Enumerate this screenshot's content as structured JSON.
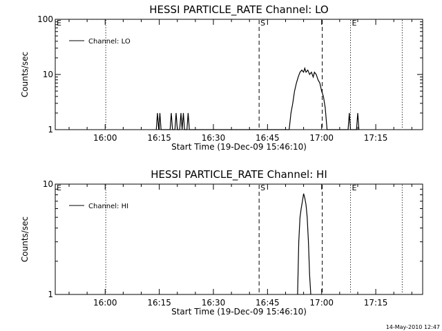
{
  "footer": {
    "timestamp": "14-May-2010 12:47"
  },
  "chart_data": [
    {
      "type": "line",
      "title": "HESSI PARTICLE_RATE Channel: LO",
      "xlabel": "Start Time (19-Dec-09 15:46:10)",
      "ylabel": "Counts/sec",
      "yscale": "log",
      "xlim": [
        "15:46:10",
        "17:28:00"
      ],
      "ylim": [
        1,
        100
      ],
      "x_tick_labels": [
        "16:00",
        "16:15",
        "16:30",
        "16:45",
        "17:00",
        "17:15"
      ],
      "y_tick_labels": [
        "1",
        "10",
        "100"
      ],
      "legend": {
        "entries": [
          "Channel: LO"
        ],
        "placement": "top-left"
      },
      "series": [
        {
          "name": "Channel: LO",
          "points": [
            [
              "16:14:10",
              1
            ],
            [
              "16:14:30",
              2
            ],
            [
              "16:14:50",
              1
            ],
            [
              "16:15:10",
              2
            ],
            [
              "16:15:30",
              1
            ],
            [
              "16:18:00",
              1
            ],
            [
              "16:18:20",
              2
            ],
            [
              "16:18:40",
              1
            ],
            [
              "16:19:20",
              1
            ],
            [
              "16:19:40",
              2
            ],
            [
              "16:20:00",
              1
            ],
            [
              "16:20:40",
              1
            ],
            [
              "16:21:00",
              2
            ],
            [
              "16:21:20",
              1
            ],
            [
              "16:21:40",
              2
            ],
            [
              "16:22:00",
              1
            ],
            [
              "16:22:40",
              1
            ],
            [
              "16:23:00",
              2
            ],
            [
              "16:23:20",
              1
            ],
            [
              "16:51:00",
              1
            ],
            [
              "16:51:30",
              2
            ],
            [
              "16:52:00",
              3
            ],
            [
              "16:52:30",
              5
            ],
            [
              "16:53:00",
              7
            ],
            [
              "16:53:30",
              9
            ],
            [
              "16:54:00",
              11
            ],
            [
              "16:54:30",
              12
            ],
            [
              "16:55:00",
              11
            ],
            [
              "16:55:20",
              13
            ],
            [
              "16:55:40",
              11
            ],
            [
              "16:56:10",
              12
            ],
            [
              "16:56:40",
              10
            ],
            [
              "16:57:10",
              11
            ],
            [
              "16:57:40",
              9
            ],
            [
              "16:58:00",
              11
            ],
            [
              "16:58:30",
              10
            ],
            [
              "16:59:00",
              8
            ],
            [
              "16:59:30",
              7
            ],
            [
              "17:00:00",
              5
            ],
            [
              "17:00:30",
              4
            ],
            [
              "17:01:00",
              2.5
            ],
            [
              "17:01:30",
              1
            ],
            [
              "17:07:20",
              1
            ],
            [
              "17:07:40",
              2
            ],
            [
              "17:08:00",
              1
            ],
            [
              "17:09:40",
              1
            ],
            [
              "17:10:00",
              2
            ],
            [
              "17:10:20",
              1
            ]
          ]
        }
      ],
      "markers": [
        {
          "label": "E",
          "time": "15:46:10",
          "style": "dotted"
        },
        {
          "label": "",
          "time": "16:00:10",
          "style": "dotted"
        },
        {
          "label": "S",
          "time": "16:42:40",
          "style": "dashed"
        },
        {
          "label": "",
          "time": "17:00:10",
          "style": "dashed"
        },
        {
          "label": "E",
          "time": "17:08:00",
          "style": "dotted"
        },
        {
          "label": "",
          "time": "17:22:20",
          "style": "dotted"
        }
      ]
    },
    {
      "type": "line",
      "title": "HESSI PARTICLE_RATE Channel: HI",
      "xlabel": "Start Time (19-Dec-09 15:46:10)",
      "ylabel": "Counts/sec",
      "yscale": "log",
      "xlim": [
        "15:46:10",
        "17:28:00"
      ],
      "ylim": [
        1,
        10
      ],
      "x_tick_labels": [
        "16:00",
        "16:15",
        "16:30",
        "16:45",
        "17:00",
        "17:15"
      ],
      "y_tick_labels": [
        "1",
        "10"
      ],
      "legend": {
        "entries": [
          "Channel: HI"
        ],
        "placement": "top-left"
      },
      "series": [
        {
          "name": "Channel: HI",
          "points": [
            [
              "16:53:20",
              1
            ],
            [
              "16:53:40",
              3
            ],
            [
              "16:54:00",
              5
            ],
            [
              "16:54:20",
              6
            ],
            [
              "16:54:40",
              7
            ],
            [
              "16:55:00",
              8.2
            ],
            [
              "16:55:20",
              7.5
            ],
            [
              "16:55:40",
              6.5
            ],
            [
              "16:56:00",
              5
            ],
            [
              "16:56:20",
              3
            ],
            [
              "16:56:40",
              1.5
            ],
            [
              "16:57:00",
              1
            ]
          ]
        }
      ],
      "markers": [
        {
          "label": "E",
          "time": "15:46:10",
          "style": "dotted"
        },
        {
          "label": "",
          "time": "16:00:10",
          "style": "dotted"
        },
        {
          "label": "S",
          "time": "16:42:40",
          "style": "dashed"
        },
        {
          "label": "",
          "time": "17:00:10",
          "style": "dashed"
        },
        {
          "label": "E",
          "time": "17:08:00",
          "style": "dotted"
        },
        {
          "label": "",
          "time": "17:22:20",
          "style": "dotted"
        }
      ]
    }
  ]
}
